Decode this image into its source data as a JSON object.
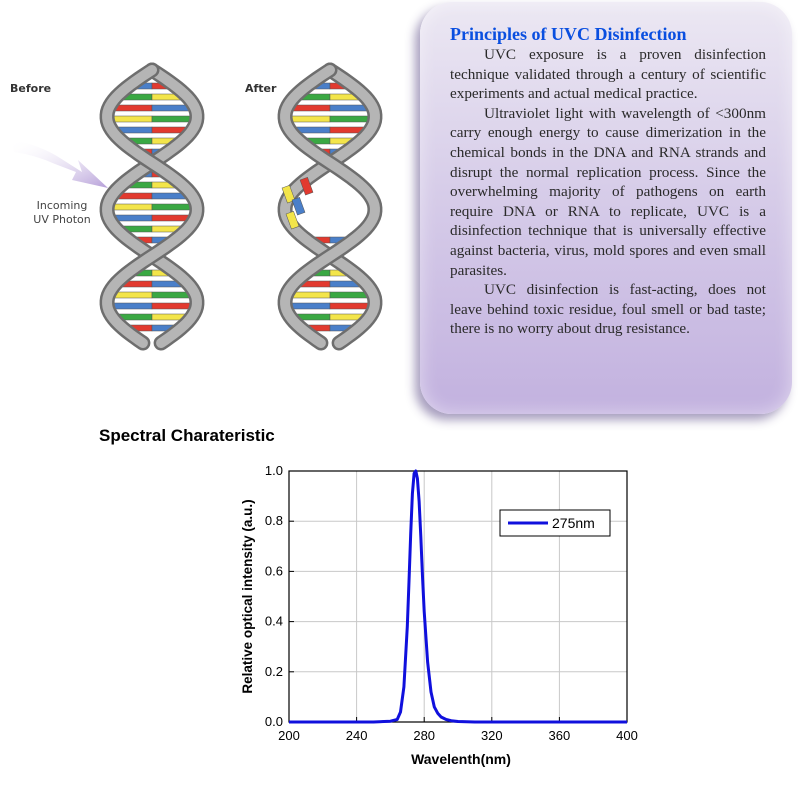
{
  "dna": {
    "before_label": "Before",
    "after_label": "After",
    "photon_label_line1": "Incoming",
    "photon_label_line2": "UV Photon",
    "colors": {
      "backbone": "#8a8a8a",
      "rung_red": "#e23a2f",
      "rung_green": "#3aa843",
      "rung_blue": "#4a7fc9",
      "rung_yellow": "#f3e54a",
      "photon": "#b59ed8"
    }
  },
  "principles": {
    "title": "Principles of UVC Disinfection",
    "paragraph1": "UVC exposure is a proven disinfection technique validated through a century of scientific experiments and actual medical practice.",
    "paragraph2": "Ultraviolet light with wavelength of <300nm carry enough energy to cause dimerization in the chemical bonds in the DNA and RNA strands and disrupt the normal replication process. Since the overwhelming majority of pathogens on earth require DNA or RNA to replicate, UVC is a disinfection technique that is universally effective against bacteria, virus, mold spores and even small parasites.",
    "paragraph3": "UVC disinfection is fast-acting, does not leave behind toxic residue, foul smell or bad taste; there is no worry about drug resistance."
  },
  "spectral_title": "Spectral Charateristic",
  "chart_data": {
    "type": "line",
    "xlabel": "Wavelenth(nm)",
    "ylabel": "Relative optical intensity (a.u.)",
    "xlim": [
      200,
      400
    ],
    "ylim": [
      0,
      1.0
    ],
    "xticks": [
      200,
      240,
      280,
      320,
      360,
      400
    ],
    "yticks": [
      0.0,
      0.2,
      0.4,
      0.6,
      0.8,
      1.0
    ],
    "xtick_labels": [
      "200",
      "240",
      "280",
      "320",
      "360",
      "400"
    ],
    "ytick_labels": [
      "0.0",
      "0.2",
      "0.4",
      "0.6",
      "0.8",
      "1.0"
    ],
    "grid": true,
    "legend_position": "top-right",
    "series": [
      {
        "name": "275nm",
        "color": "#1010dd",
        "x": [
          200,
          250,
          260,
          264,
          266,
          268,
          270,
          271,
          272,
          273,
          274,
          275,
          276,
          277,
          278,
          279,
          280,
          282,
          284,
          286,
          288,
          290,
          293,
          296,
          300,
          310,
          330,
          400
        ],
        "y": [
          0.0,
          0.0,
          0.003,
          0.01,
          0.04,
          0.14,
          0.38,
          0.56,
          0.75,
          0.91,
          0.99,
          1.0,
          0.97,
          0.88,
          0.74,
          0.58,
          0.44,
          0.24,
          0.12,
          0.06,
          0.035,
          0.02,
          0.01,
          0.005,
          0.002,
          0.0,
          0.0,
          0.0
        ]
      }
    ]
  }
}
